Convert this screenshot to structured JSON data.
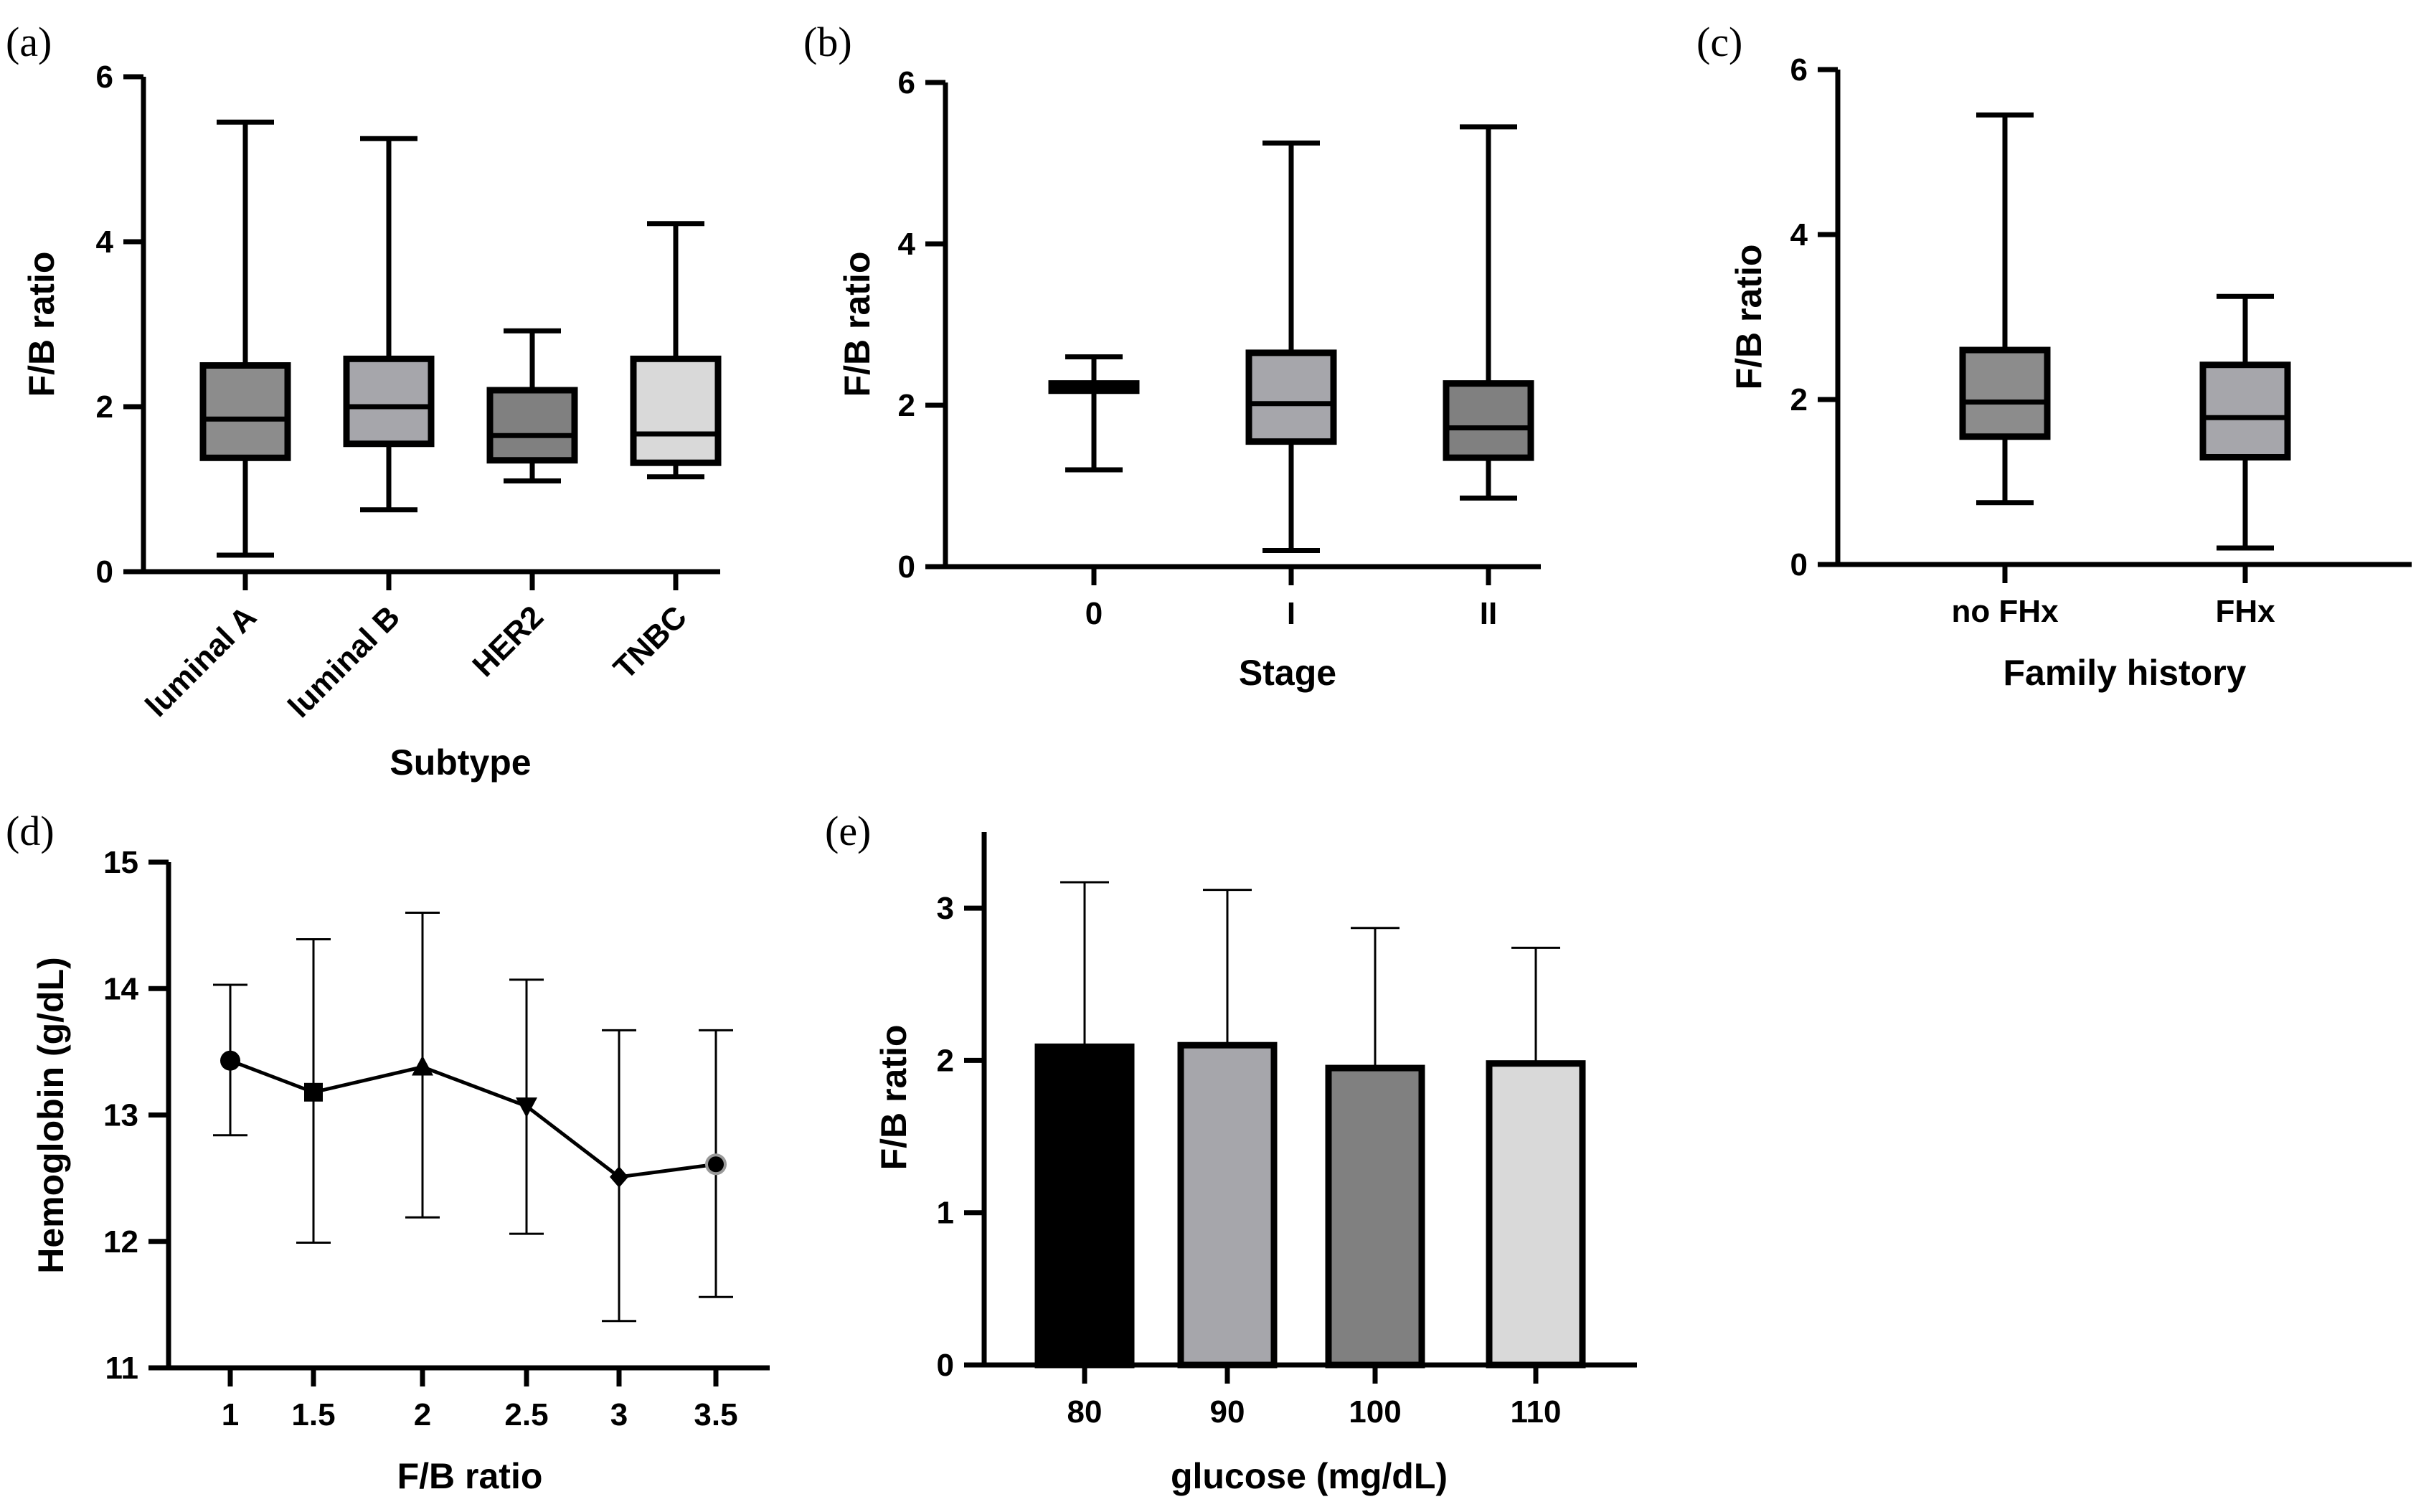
{
  "figure": {
    "panels": [
      "(a)",
      "(b)",
      "(c)",
      "(d)",
      "(e)"
    ]
  },
  "chart_data": [
    {
      "id": "a",
      "type": "box",
      "panel_label": "(a)",
      "xlabel": "Subtype",
      "ylabel": "F/B ratio",
      "ylim": [
        0,
        6
      ],
      "yticks": [
        "0",
        "2",
        "4",
        "6"
      ],
      "categories": [
        "luminal A",
        "luminal B",
        "HER2",
        "TNBC"
      ],
      "boxes": [
        {
          "min": 0.2,
          "q1": 1.38,
          "median": 1.85,
          "q3": 2.5,
          "max": 5.45,
          "color": "#8c8c8c"
        },
        {
          "min": 0.75,
          "q1": 1.55,
          "median": 2.0,
          "q3": 2.58,
          "max": 5.25,
          "color": "#a6a6ab"
        },
        {
          "min": 1.1,
          "q1": 1.35,
          "median": 1.65,
          "q3": 2.2,
          "max": 2.92,
          "color": "#808080"
        },
        {
          "min": 1.15,
          "q1": 1.32,
          "median": 1.67,
          "q3": 2.58,
          "max": 4.22,
          "color": "#d9d9d9"
        }
      ]
    },
    {
      "id": "b",
      "type": "box",
      "panel_label": "(b)",
      "xlabel": "Stage",
      "ylabel": "F/B ratio",
      "ylim": [
        0,
        6
      ],
      "yticks": [
        "0",
        "2",
        "4",
        "6"
      ],
      "categories": [
        "0",
        "I",
        "II"
      ],
      "boxes": [
        {
          "min": 1.2,
          "q1": 2.18,
          "median": 2.22,
          "q3": 2.27,
          "max": 2.6,
          "color": "#8c8c8c"
        },
        {
          "min": 0.2,
          "q1": 1.55,
          "median": 2.02,
          "q3": 2.65,
          "max": 5.25,
          "color": "#a6a6ab"
        },
        {
          "min": 0.85,
          "q1": 1.35,
          "median": 1.72,
          "q3": 2.27,
          "max": 5.45,
          "color": "#808080"
        }
      ]
    },
    {
      "id": "c",
      "type": "box",
      "panel_label": "(c)",
      "xlabel": "Family history",
      "ylabel": "F/B ratio",
      "ylim": [
        0,
        6
      ],
      "yticks": [
        "0",
        "2",
        "4",
        "6"
      ],
      "categories": [
        "no FHx",
        "FHx"
      ],
      "boxes": [
        {
          "min": 0.75,
          "q1": 1.55,
          "median": 1.97,
          "q3": 2.6,
          "max": 5.45,
          "color": "#8c8c8c"
        },
        {
          "min": 0.2,
          "q1": 1.3,
          "median": 1.78,
          "q3": 2.42,
          "max": 3.25,
          "color": "#a6a6ab"
        }
      ]
    },
    {
      "id": "d",
      "type": "line",
      "panel_label": "(d)",
      "xlabel": "F/B ratio",
      "ylabel": "Hemoglobin (g/dL)",
      "ylim": [
        11,
        15
      ],
      "yticks": [
        "11",
        "12",
        "13",
        "14",
        "15"
      ],
      "x": [
        "1",
        "1.5",
        "2",
        "2.5",
        "3",
        "3.5"
      ],
      "values": [
        13.43,
        13.18,
        13.38,
        13.07,
        12.51,
        12.61
      ],
      "err_low": [
        12.84,
        11.99,
        12.19,
        12.06,
        11.37,
        11.56
      ],
      "err_high": [
        14.03,
        14.39,
        14.6,
        14.07,
        13.67,
        13.67
      ],
      "markers": [
        "circle",
        "square",
        "triangle-up",
        "triangle-down",
        "diamond",
        "circle-gray"
      ]
    },
    {
      "id": "e",
      "type": "bar",
      "panel_label": "(e)",
      "xlabel": "glucose (mg/dL)",
      "ylabel": "F/B ratio",
      "ylim": [
        0,
        3.5
      ],
      "yticks": [
        "0",
        "1",
        "2",
        "3"
      ],
      "categories": [
        "80",
        "90",
        "100",
        "110"
      ],
      "values": [
        2.09,
        2.1,
        1.95,
        1.98
      ],
      "err_high": [
        3.17,
        3.12,
        2.87,
        2.74
      ],
      "colors": [
        "#000000",
        "#a6a6ab",
        "#808080",
        "#d9d9d9"
      ]
    }
  ]
}
